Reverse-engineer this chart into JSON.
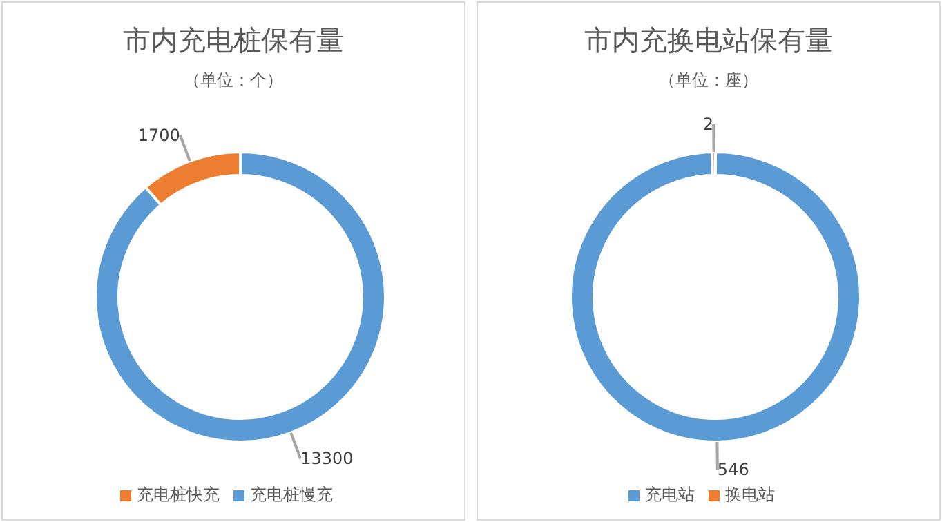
{
  "chart_data": [
    {
      "type": "donut",
      "title": "市内充电桩保有量",
      "subtitle": "（单位：个）",
      "categories": [
        "充电桩慢充",
        "充电桩快充"
      ],
      "values": [
        13300,
        1700
      ],
      "colors": [
        "#5b9bd5",
        "#ed7d31"
      ],
      "data_labels": true,
      "legend": "bottom"
    },
    {
      "type": "donut",
      "title": "市内充换电站保有量",
      "subtitle": "（单位：座）",
      "categories": [
        "充电站",
        "换电站"
      ],
      "values": [
        546,
        2
      ],
      "colors": [
        "#5b9bd5",
        "#ed7d31"
      ],
      "data_labels": true,
      "legend": "bottom"
    }
  ]
}
